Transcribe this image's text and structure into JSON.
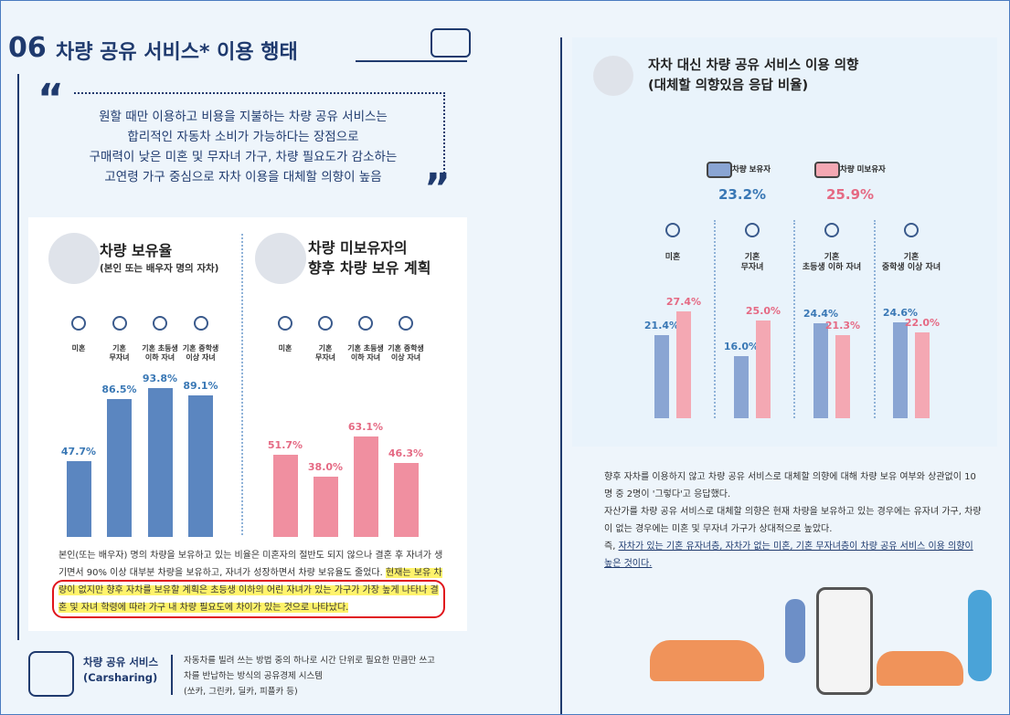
{
  "header": {
    "number": "06",
    "title": "차량 공유 서비스* 이용 행태"
  },
  "quote": "원할 때만 이용하고 비용을 지불하는 차량 공유 서비스는\n합리적인 자동차 소비가 가능하다는 장점으로\n구매력이 낮은 미혼 및 무자녀 가구, 차량 필요도가 감소하는\n고연령 가구 중심으로 자차 이용을 대체할 의향이 높음",
  "panels": [
    {
      "title": "차량 보유율",
      "subtitle": "(본인 또는 배우자 명의 자차)"
    },
    {
      "title": "차량 미보유자의\n향후 차량 보유 계획"
    }
  ],
  "chart_data": [
    {
      "type": "bar",
      "categories": [
        "미혼",
        "기혼\n무자녀",
        "기혼 초등생\n이하 자녀",
        "기혼 중학생\n이상 자녀"
      ],
      "values": [
        47.7,
        86.5,
        93.8,
        89.1
      ],
      "value_labels": [
        "47.7%",
        "86.5%",
        "93.8%",
        "89.1%"
      ],
      "color": "#5b86c0",
      "label_color": "#3a78b5"
    },
    {
      "type": "bar",
      "categories": [
        "미혼",
        "기혼\n무자녀",
        "기혼 초등생\n이하 자녀",
        "기혼 중학생\n이상 자녀"
      ],
      "values": [
        51.7,
        38.0,
        63.1,
        46.3
      ],
      "value_labels": [
        "51.7%",
        "38.0%",
        "63.1%",
        "46.3%"
      ],
      "color": "#f08fa0",
      "label_color": "#e56a84"
    },
    {
      "type": "grouped_bar",
      "title": "자차 대신 차량 공유 서비스 이용 의향\n(대체할 의향있음 응답 비율)",
      "categories": [
        "미혼",
        "기혼\n무자녀",
        "기혼\n초등생 이하 자녀",
        "기혼\n중학생 이상 자녀"
      ],
      "series": [
        {
          "name": "차량 보유자",
          "color": "#8aa5d3",
          "label_color": "#3a78b5",
          "values": [
            21.4,
            16.0,
            24.4,
            24.6
          ],
          "value_labels": [
            "21.4%",
            "16.0%",
            "24.4%",
            "24.6%"
          ],
          "total": 23.2,
          "total_label": "23.2%"
        },
        {
          "name": "차량 미보유자",
          "color": "#f4a8b3",
          "label_color": "#e56a84",
          "values": [
            27.4,
            25.0,
            21.3,
            22.0
          ],
          "value_labels": [
            "27.4%",
            "25.0%",
            "21.3%",
            "22.0%"
          ],
          "total": 25.9,
          "total_label": "25.9%"
        }
      ]
    }
  ],
  "left_note": {
    "text": "본인(또는 배우자) 명의 차량을 보유하고 있는 비율은 미혼자의 절반도 되지 않으나 결혼 후 자녀가 생기면서 90% 이상 대부분 차량을 보유하고, 자녀가 성장하면서 차량 보유율도 줄었다.",
    "highlight": "현재는 보유 차량이 없지만 향후 자차를 보유할 계획은 초등생 이하의 어린 자녀가 있는 가구가 가장 높게 나타나 결혼 및 자녀 학령에 따라 가구 내 차량 필요도에 차이가 있는 것으로 나타났다."
  },
  "definition": {
    "term": "차량 공유 서비스\n(Carsharing)",
    "text": "자동차를 빌려 쓰는 방법 중의 하나로 시간 단위로 필요한 만큼만 쓰고\n차를 반납하는 방식의 공유경제 시스템\n(쏘카, 그린카, 딜카, 피플카 등)"
  },
  "right_note": {
    "paragraphs": [
      "향후 자차를 이용하지 않고 차량 공유 서비스로 대체할 의향에 대해 차량 보유 여부와 상관없이 10명 중 2명이 '그렇다'고 응답했다.",
      "자산가를 차량 공유 서비스로 대체할 의향은 현재 차량을 보유하고 있는 경우에는 유자녀 가구, 차량이 없는 경우에는 미혼 및 무자녀 가구가 상대적으로 높았다."
    ],
    "prefix": "즉, ",
    "underlined": "자차가 있는 기혼 유자녀층, 자차가 없는 미혼, 기혼 무자녀층이 차량 공유 서비스 이용 의향이 높은 것이다."
  }
}
